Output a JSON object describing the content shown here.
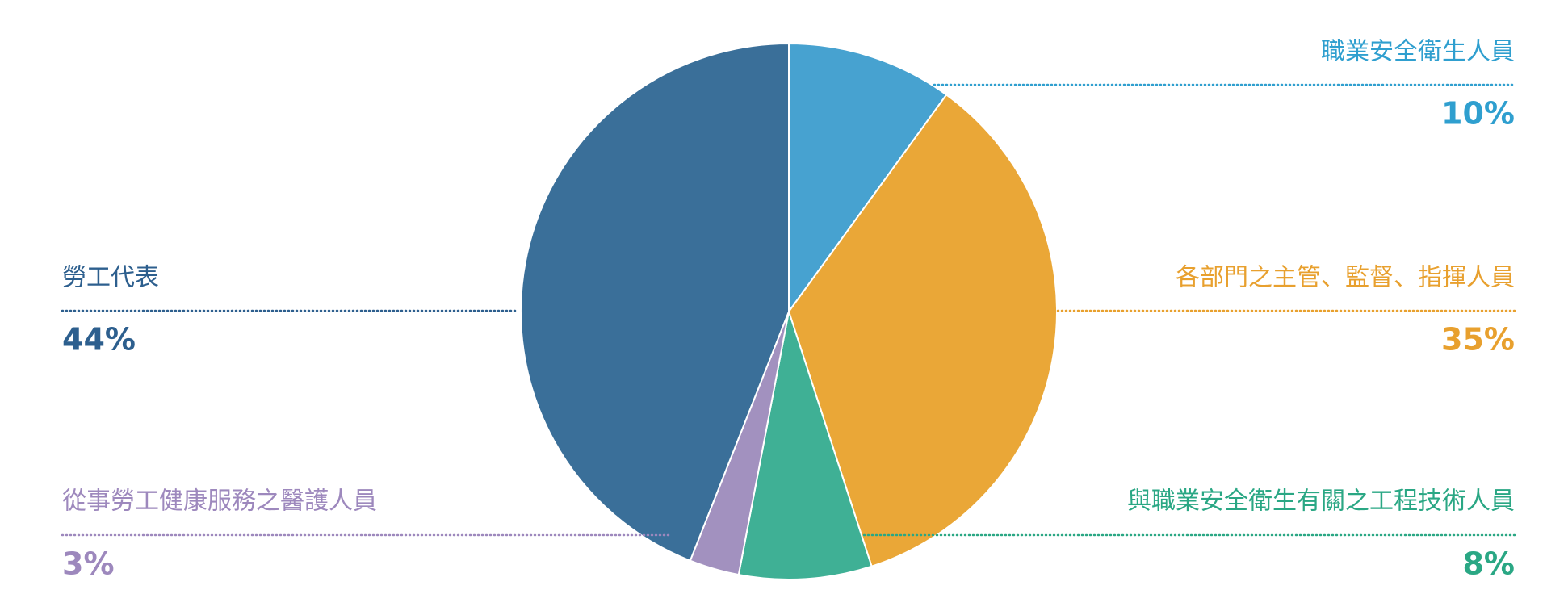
{
  "chart_data": {
    "type": "pie",
    "categories": [
      "職業安全衛生人員",
      "各部門之主管、監督、指揮人員",
      "與職業安全衛生有關之工程技術人員",
      "從事勞工健康服務之醫護人員",
      "勞工代表"
    ],
    "values": [
      10,
      35,
      8,
      3,
      44
    ],
    "value_labels": [
      "10%",
      "35%",
      "8%",
      "3%",
      "44%"
    ],
    "colors": [
      "#47a2d0",
      "#eaa737",
      "#3fb095",
      "#a291bf",
      "#3a6f99"
    ],
    "label_colors": [
      "#2f9fcf",
      "#e8a02e",
      "#2aa784",
      "#9d88bd",
      "#2d5f8e"
    ]
  }
}
